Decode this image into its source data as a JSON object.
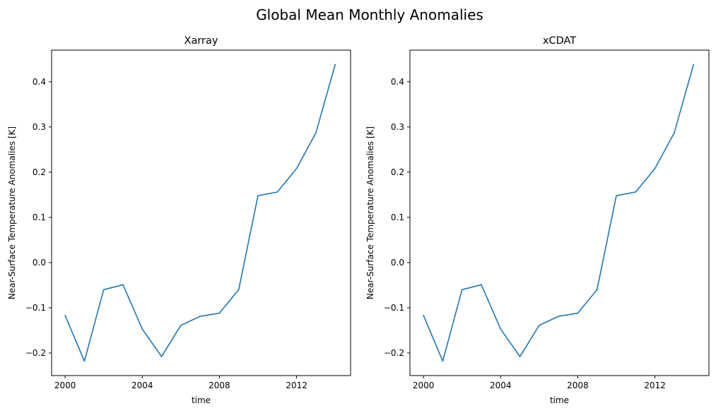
{
  "figure": {
    "suptitle": "Global Mean Monthly Anomalies"
  },
  "chart_data": [
    {
      "type": "line",
      "title": "Xarray",
      "xlabel": "time",
      "ylabel": "Near-Surface Temperature Anomalies [K]",
      "xlim": [
        1999.3,
        2014.8
      ],
      "ylim": [
        -0.25,
        0.47
      ],
      "xticks": [
        2000,
        2004,
        2008,
        2012
      ],
      "yticks": [
        -0.2,
        -0.1,
        0.0,
        0.1,
        0.2,
        0.3,
        0.4
      ],
      "grid": false,
      "series": [
        {
          "color": "#1f77b4",
          "x": [
            2000,
            2001,
            2002,
            2003,
            2004,
            2005,
            2006,
            2007,
            2008,
            2009,
            2010,
            2011,
            2012,
            2013,
            2014
          ],
          "y": [
            -0.117,
            -0.218,
            -0.06,
            -0.049,
            -0.147,
            -0.208,
            -0.139,
            -0.119,
            -0.112,
            -0.06,
            0.148,
            0.156,
            0.208,
            0.287,
            0.438
          ]
        }
      ]
    },
    {
      "type": "line",
      "title": "xCDAT",
      "xlabel": "time",
      "ylabel": "Near-Surface Temperature Anomalies [K]",
      "xlim": [
        1999.3,
        2014.8
      ],
      "ylim": [
        -0.25,
        0.47
      ],
      "xticks": [
        2000,
        2004,
        2008,
        2012
      ],
      "yticks": [
        -0.2,
        -0.1,
        0.0,
        0.1,
        0.2,
        0.3,
        0.4
      ],
      "grid": false,
      "series": [
        {
          "color": "#1f77b4",
          "x": [
            2000,
            2001,
            2002,
            2003,
            2004,
            2005,
            2006,
            2007,
            2008,
            2009,
            2010,
            2011,
            2012,
            2013,
            2014
          ],
          "y": [
            -0.117,
            -0.218,
            -0.06,
            -0.049,
            -0.147,
            -0.208,
            -0.139,
            -0.119,
            -0.112,
            -0.06,
            0.148,
            0.156,
            0.208,
            0.287,
            0.438
          ]
        }
      ]
    }
  ]
}
